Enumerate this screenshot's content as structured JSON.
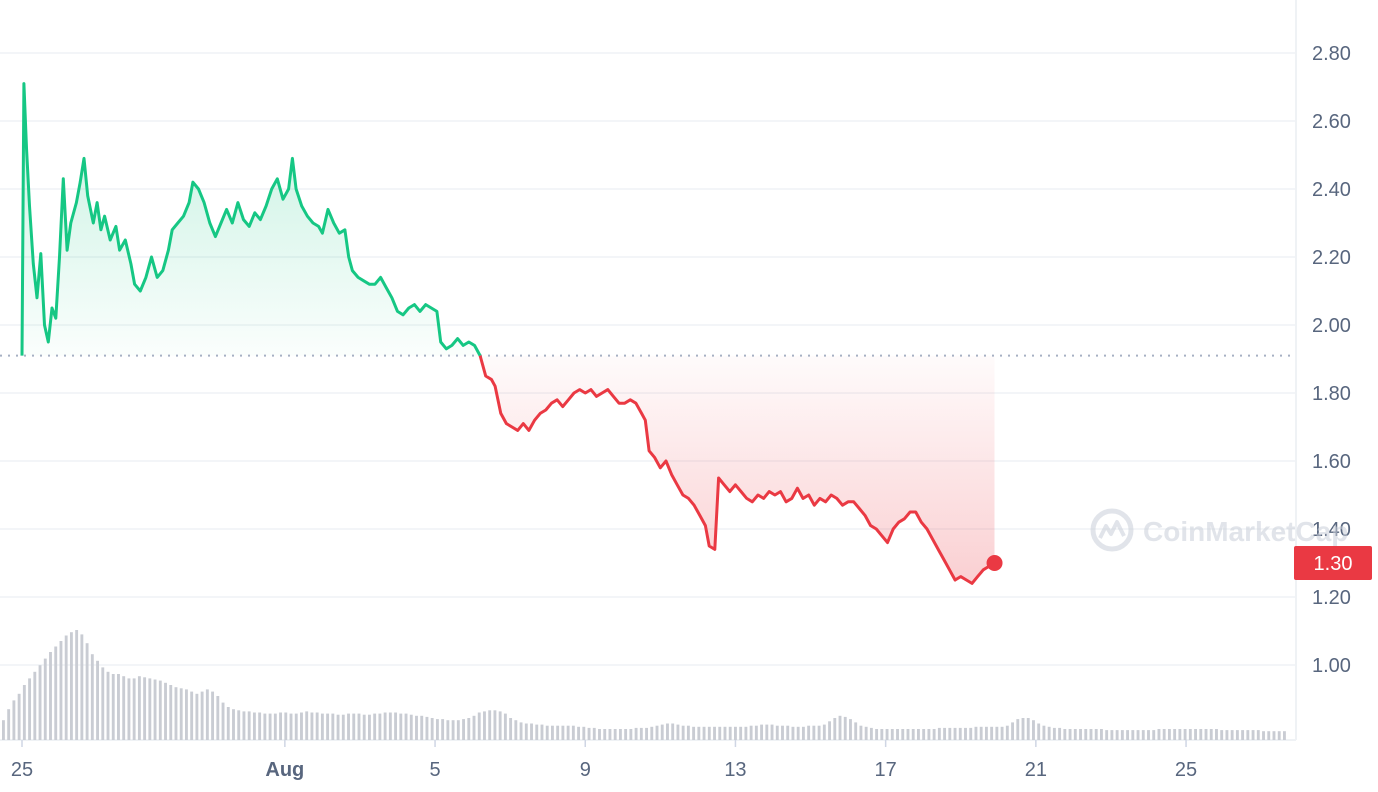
{
  "chart_data": {
    "type": "line",
    "title": "",
    "xlabel": "",
    "ylabel": "",
    "ylim": [
      0.8,
      2.9
    ],
    "baseline": 1.91,
    "colors": {
      "up": "#16c784",
      "down": "#ea3943",
      "grid": "#eff2f5",
      "axis_text": "#58667e",
      "volume": "#c9ccd3"
    },
    "x_ticks": [
      "25",
      "Aug",
      "5",
      "9",
      "13",
      "17",
      "21",
      "25"
    ],
    "y_ticks": [
      "2.80",
      "2.60",
      "2.40",
      "2.20",
      "2.00",
      "1.80",
      "1.60",
      "1.40",
      "1.20",
      "1.00"
    ],
    "current_price_label": "1.30",
    "watermark": "CoinMarketCap",
    "series": [
      {
        "x_unit": "days since Jul 25",
        "values": [
          [
            0.0,
            1.91
          ],
          [
            0.05,
            2.71
          ],
          [
            0.12,
            2.52
          ],
          [
            0.2,
            2.35
          ],
          [
            0.3,
            2.18
          ],
          [
            0.4,
            2.08
          ],
          [
            0.5,
            2.21
          ],
          [
            0.6,
            2.0
          ],
          [
            0.7,
            1.95
          ],
          [
            0.8,
            2.05
          ],
          [
            0.9,
            2.02
          ],
          [
            1.0,
            2.2
          ],
          [
            1.1,
            2.43
          ],
          [
            1.2,
            2.22
          ],
          [
            1.3,
            2.3
          ],
          [
            1.45,
            2.36
          ],
          [
            1.55,
            2.42
          ],
          [
            1.65,
            2.49
          ],
          [
            1.75,
            2.38
          ],
          [
            1.9,
            2.3
          ],
          [
            2.0,
            2.36
          ],
          [
            2.1,
            2.28
          ],
          [
            2.2,
            2.32
          ],
          [
            2.35,
            2.25
          ],
          [
            2.5,
            2.29
          ],
          [
            2.6,
            2.22
          ],
          [
            2.75,
            2.25
          ],
          [
            2.9,
            2.18
          ],
          [
            3.0,
            2.12
          ],
          [
            3.15,
            2.1
          ],
          [
            3.3,
            2.14
          ],
          [
            3.45,
            2.2
          ],
          [
            3.6,
            2.14
          ],
          [
            3.75,
            2.16
          ],
          [
            3.9,
            2.22
          ],
          [
            4.0,
            2.28
          ],
          [
            4.15,
            2.3
          ],
          [
            4.3,
            2.32
          ],
          [
            4.45,
            2.36
          ],
          [
            4.55,
            2.42
          ],
          [
            4.7,
            2.4
          ],
          [
            4.85,
            2.36
          ],
          [
            5.0,
            2.3
          ],
          [
            5.15,
            2.26
          ],
          [
            5.3,
            2.3
          ],
          [
            5.45,
            2.34
          ],
          [
            5.6,
            2.3
          ],
          [
            5.75,
            2.36
          ],
          [
            5.9,
            2.31
          ],
          [
            6.05,
            2.29
          ],
          [
            6.2,
            2.33
          ],
          [
            6.35,
            2.31
          ],
          [
            6.5,
            2.35
          ],
          [
            6.65,
            2.4
          ],
          [
            6.8,
            2.43
          ],
          [
            6.95,
            2.37
          ],
          [
            7.1,
            2.4
          ],
          [
            7.2,
            2.49
          ],
          [
            7.3,
            2.4
          ],
          [
            7.45,
            2.35
          ],
          [
            7.6,
            2.32
          ],
          [
            7.75,
            2.3
          ],
          [
            7.9,
            2.29
          ],
          [
            8.0,
            2.27
          ],
          [
            8.15,
            2.34
          ],
          [
            8.3,
            2.3
          ],
          [
            8.45,
            2.27
          ],
          [
            8.6,
            2.28
          ],
          [
            8.7,
            2.2
          ],
          [
            8.8,
            2.16
          ],
          [
            8.95,
            2.14
          ],
          [
            9.1,
            2.13
          ],
          [
            9.25,
            2.12
          ],
          [
            9.4,
            2.12
          ],
          [
            9.55,
            2.14
          ],
          [
            9.7,
            2.11
          ],
          [
            9.85,
            2.08
          ],
          [
            10.0,
            2.04
          ],
          [
            10.15,
            2.03
          ],
          [
            10.3,
            2.05
          ],
          [
            10.45,
            2.06
          ],
          [
            10.6,
            2.04
          ],
          [
            10.75,
            2.06
          ],
          [
            10.9,
            2.05
          ],
          [
            11.05,
            2.04
          ],
          [
            11.15,
            1.95
          ],
          [
            11.3,
            1.93
          ],
          [
            11.45,
            1.94
          ],
          [
            11.6,
            1.96
          ],
          [
            11.75,
            1.94
          ],
          [
            11.9,
            1.95
          ],
          [
            12.05,
            1.94
          ],
          [
            12.2,
            1.91
          ],
          [
            12.35,
            1.85
          ],
          [
            12.5,
            1.84
          ],
          [
            12.6,
            1.82
          ],
          [
            12.75,
            1.74
          ],
          [
            12.9,
            1.71
          ],
          [
            13.05,
            1.7
          ],
          [
            13.2,
            1.69
          ],
          [
            13.35,
            1.71
          ],
          [
            13.5,
            1.69
          ],
          [
            13.65,
            1.72
          ],
          [
            13.8,
            1.74
          ],
          [
            13.95,
            1.75
          ],
          [
            14.1,
            1.77
          ],
          [
            14.25,
            1.78
          ],
          [
            14.4,
            1.76
          ],
          [
            14.55,
            1.78
          ],
          [
            14.7,
            1.8
          ],
          [
            14.85,
            1.81
          ],
          [
            15.0,
            1.8
          ],
          [
            15.15,
            1.81
          ],
          [
            15.3,
            1.79
          ],
          [
            15.45,
            1.8
          ],
          [
            15.6,
            1.81
          ],
          [
            15.75,
            1.79
          ],
          [
            15.9,
            1.77
          ],
          [
            16.05,
            1.77
          ],
          [
            16.2,
            1.78
          ],
          [
            16.35,
            1.77
          ],
          [
            16.5,
            1.74
          ],
          [
            16.6,
            1.72
          ],
          [
            16.7,
            1.63
          ],
          [
            16.85,
            1.61
          ],
          [
            17.0,
            1.58
          ],
          [
            17.15,
            1.6
          ],
          [
            17.3,
            1.56
          ],
          [
            17.45,
            1.53
          ],
          [
            17.6,
            1.5
          ],
          [
            17.75,
            1.49
          ],
          [
            17.9,
            1.47
          ],
          [
            18.05,
            1.44
          ],
          [
            18.2,
            1.41
          ],
          [
            18.3,
            1.35
          ],
          [
            18.45,
            1.34
          ],
          [
            18.55,
            1.55
          ],
          [
            18.7,
            1.53
          ],
          [
            18.85,
            1.51
          ],
          [
            19.0,
            1.53
          ],
          [
            19.15,
            1.51
          ],
          [
            19.3,
            1.49
          ],
          [
            19.45,
            1.48
          ],
          [
            19.6,
            1.5
          ],
          [
            19.75,
            1.49
          ],
          [
            19.9,
            1.51
          ],
          [
            20.05,
            1.5
          ],
          [
            20.2,
            1.51
          ],
          [
            20.35,
            1.48
          ],
          [
            20.5,
            1.49
          ],
          [
            20.65,
            1.52
          ],
          [
            20.8,
            1.49
          ],
          [
            20.95,
            1.5
          ],
          [
            21.1,
            1.47
          ],
          [
            21.25,
            1.49
          ],
          [
            21.4,
            1.48
          ],
          [
            21.55,
            1.5
          ],
          [
            21.7,
            1.49
          ],
          [
            21.85,
            1.47
          ],
          [
            22.0,
            1.48
          ],
          [
            22.15,
            1.48
          ],
          [
            22.3,
            1.46
          ],
          [
            22.45,
            1.44
          ],
          [
            22.6,
            1.41
          ],
          [
            22.75,
            1.4
          ],
          [
            22.9,
            1.38
          ],
          [
            23.05,
            1.36
          ],
          [
            23.2,
            1.4
          ],
          [
            23.35,
            1.42
          ],
          [
            23.5,
            1.43
          ],
          [
            23.65,
            1.45
          ],
          [
            23.8,
            1.45
          ],
          [
            23.95,
            1.42
          ],
          [
            24.1,
            1.4
          ],
          [
            24.25,
            1.37
          ],
          [
            24.4,
            1.34
          ],
          [
            24.55,
            1.31
          ],
          [
            24.7,
            1.28
          ],
          [
            24.85,
            1.25
          ],
          [
            25.0,
            1.26
          ],
          [
            25.15,
            1.25
          ],
          [
            25.3,
            1.24
          ],
          [
            25.45,
            1.26
          ],
          [
            25.6,
            1.28
          ],
          [
            25.75,
            1.29
          ],
          [
            25.9,
            1.3
          ]
        ]
      }
    ],
    "volume": [
      0.18,
      0.28,
      0.36,
      0.42,
      0.5,
      0.56,
      0.62,
      0.68,
      0.74,
      0.8,
      0.85,
      0.9,
      0.95,
      0.98,
      1.0,
      0.96,
      0.88,
      0.78,
      0.72,
      0.66,
      0.62,
      0.6,
      0.6,
      0.58,
      0.56,
      0.56,
      0.58,
      0.57,
      0.56,
      0.55,
      0.54,
      0.52,
      0.5,
      0.48,
      0.47,
      0.46,
      0.44,
      0.42,
      0.44,
      0.46,
      0.44,
      0.4,
      0.34,
      0.3,
      0.28,
      0.27,
      0.26,
      0.26,
      0.25,
      0.25,
      0.24,
      0.24,
      0.24,
      0.25,
      0.25,
      0.24,
      0.24,
      0.25,
      0.26,
      0.25,
      0.25,
      0.24,
      0.24,
      0.24,
      0.23,
      0.23,
      0.24,
      0.24,
      0.24,
      0.23,
      0.23,
      0.24,
      0.24,
      0.25,
      0.25,
      0.25,
      0.24,
      0.24,
      0.23,
      0.22,
      0.22,
      0.21,
      0.2,
      0.19,
      0.19,
      0.18,
      0.18,
      0.18,
      0.19,
      0.2,
      0.22,
      0.25,
      0.26,
      0.27,
      0.27,
      0.26,
      0.24,
      0.2,
      0.18,
      0.16,
      0.15,
      0.15,
      0.14,
      0.14,
      0.13,
      0.13,
      0.13,
      0.13,
      0.13,
      0.13,
      0.12,
      0.12,
      0.11,
      0.11,
      0.1,
      0.1,
      0.1,
      0.1,
      0.1,
      0.1,
      0.1,
      0.11,
      0.11,
      0.11,
      0.12,
      0.13,
      0.14,
      0.15,
      0.15,
      0.14,
      0.13,
      0.13,
      0.12,
      0.12,
      0.12,
      0.12,
      0.12,
      0.12,
      0.12,
      0.12,
      0.12,
      0.12,
      0.12,
      0.13,
      0.13,
      0.14,
      0.14,
      0.14,
      0.13,
      0.13,
      0.13,
      0.12,
      0.12,
      0.12,
      0.13,
      0.13,
      0.13,
      0.14,
      0.17,
      0.2,
      0.22,
      0.21,
      0.19,
      0.16,
      0.13,
      0.12,
      0.11,
      0.1,
      0.1,
      0.1,
      0.1,
      0.1,
      0.1,
      0.1,
      0.1,
      0.1,
      0.1,
      0.1,
      0.1,
      0.11,
      0.11,
      0.11,
      0.11,
      0.11,
      0.11,
      0.11,
      0.12,
      0.12,
      0.12,
      0.12,
      0.12,
      0.12,
      0.13,
      0.16,
      0.19,
      0.2,
      0.2,
      0.18,
      0.15,
      0.13,
      0.12,
      0.11,
      0.11,
      0.1,
      0.1,
      0.1,
      0.1,
      0.1,
      0.1,
      0.1,
      0.1,
      0.09,
      0.09,
      0.09,
      0.09,
      0.09,
      0.09,
      0.09,
      0.09,
      0.09,
      0.09,
      0.1,
      0.1,
      0.1,
      0.1,
      0.1,
      0.1,
      0.1,
      0.1,
      0.1,
      0.1,
      0.1,
      0.1,
      0.09,
      0.09,
      0.09,
      0.09,
      0.09,
      0.09,
      0.09,
      0.09,
      0.08,
      0.08,
      0.08,
      0.08,
      0.08
    ]
  }
}
